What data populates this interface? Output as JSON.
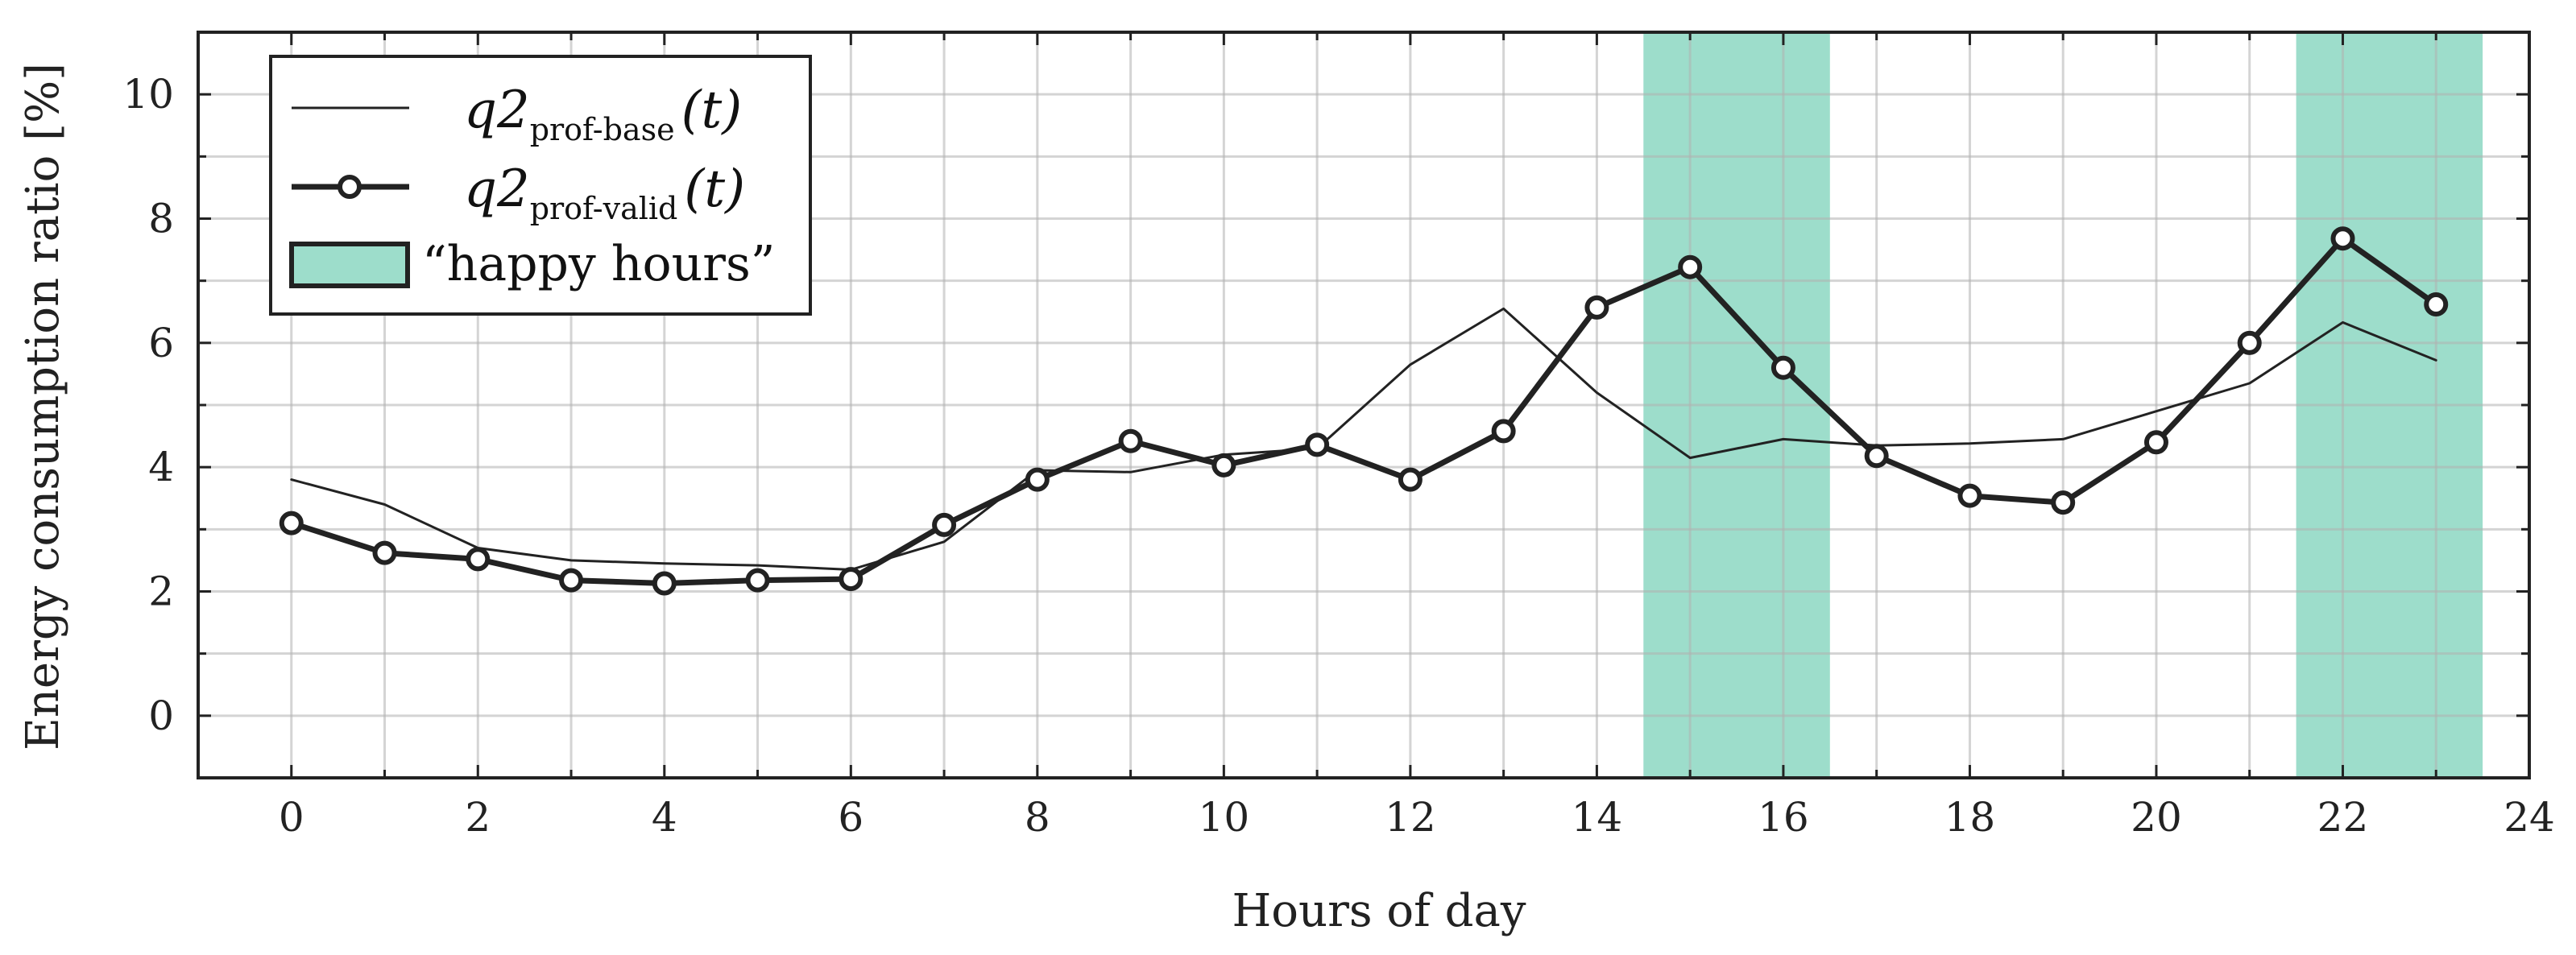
{
  "chart_data": {
    "type": "line",
    "xlabel": "Hours of day",
    "ylabel": "Energy consumption ratio [%]",
    "xlim": [
      -1,
      24
    ],
    "ylim": [
      -1,
      11
    ],
    "xticks": [
      0,
      2,
      4,
      6,
      8,
      10,
      12,
      14,
      16,
      18,
      20,
      22,
      24
    ],
    "yticks": [
      0,
      2,
      4,
      6,
      8,
      10
    ],
    "grid": true,
    "legend_position": "top-left",
    "happy_hours": {
      "label": "“happy hours”",
      "color": "#9dddcb",
      "ranges": [
        [
          14.5,
          16.5
        ],
        [
          21.5,
          23.5
        ]
      ]
    },
    "series": [
      {
        "name_main": "q2",
        "name_sub": "prof-base",
        "name_tail": "(t)",
        "style": "thin",
        "color": "#222222",
        "x": [
          0,
          1,
          2,
          3,
          4,
          5,
          6,
          7,
          8,
          9,
          10,
          11,
          12,
          13,
          14,
          15,
          16,
          17,
          18,
          19,
          20,
          21,
          22,
          23
        ],
        "values": [
          3.8,
          3.4,
          2.7,
          2.5,
          2.45,
          2.42,
          2.35,
          2.8,
          3.95,
          3.92,
          4.2,
          4.3,
          5.65,
          6.55,
          5.2,
          4.15,
          4.45,
          4.35,
          4.38,
          4.45,
          4.9,
          5.35,
          6.33,
          5.72
        ]
      },
      {
        "name_main": "q2",
        "name_sub": "prof-valid",
        "name_tail": "(t)",
        "style": "thick-markers",
        "color": "#222222",
        "x": [
          0,
          1,
          2,
          3,
          4,
          5,
          6,
          7,
          8,
          9,
          10,
          11,
          12,
          13,
          14,
          15,
          16,
          17,
          18,
          19,
          20,
          21,
          22,
          23
        ],
        "values": [
          3.1,
          2.62,
          2.52,
          2.18,
          2.13,
          2.18,
          2.2,
          3.07,
          3.8,
          4.42,
          4.03,
          4.36,
          3.8,
          4.58,
          6.57,
          7.22,
          5.6,
          4.18,
          3.54,
          3.43,
          4.4,
          6.0,
          7.68,
          6.62
        ]
      }
    ]
  }
}
